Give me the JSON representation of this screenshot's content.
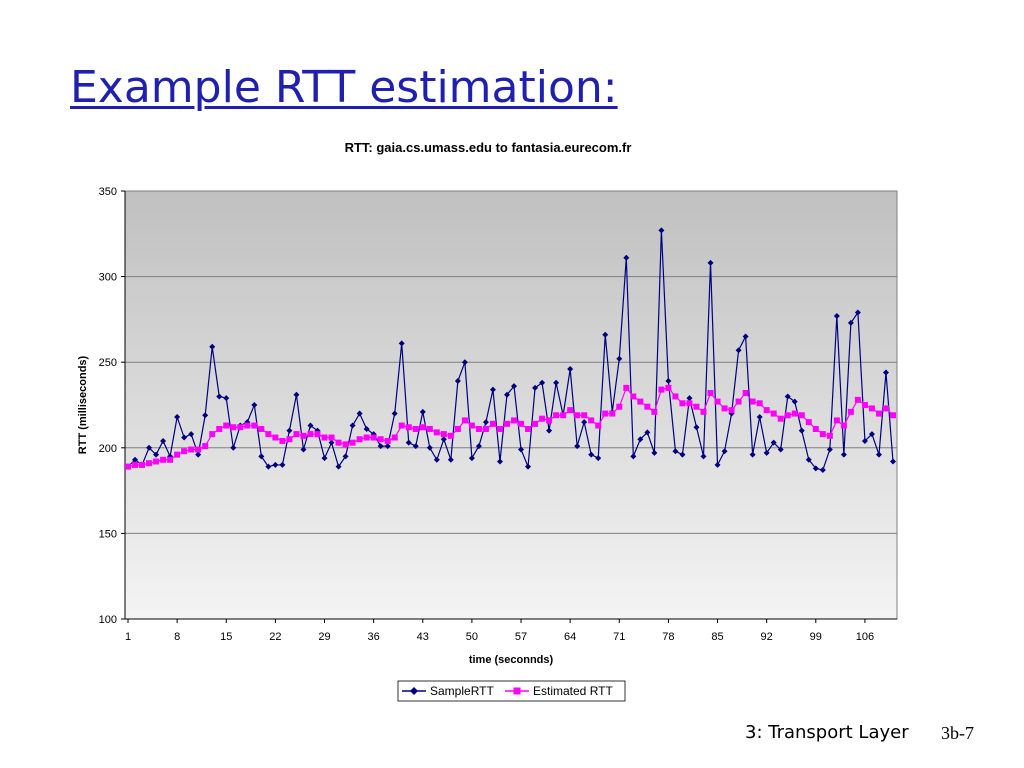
{
  "slide": {
    "title": "Example RTT estimation:",
    "footer_text": "3: Transport Layer",
    "footer_page": "3b-7"
  },
  "chart_data": {
    "type": "line",
    "title": "RTT: gaia.cs.umass.edu to fantasia.eurecom.fr",
    "xlabel": "time (seconnds)",
    "ylabel": "RTT (milliseconds)",
    "ylim": [
      100,
      350
    ],
    "yticks": [
      100,
      150,
      200,
      250,
      300,
      350
    ],
    "xticks": [
      1,
      8,
      15,
      22,
      29,
      36,
      43,
      50,
      57,
      64,
      71,
      78,
      85,
      92,
      99,
      106
    ],
    "x_start": 1,
    "grid": true,
    "legend_position": "bottom",
    "colors": {
      "sample": "#000080",
      "estimated": "#ff00ff",
      "plot_top": "#c0c0c0",
      "plot_bottom": "#f4f4f4"
    },
    "series": [
      {
        "name": "SampleRTT",
        "marker": "diamond",
        "values": [
          189,
          193,
          190,
          200,
          196,
          204,
          195,
          218,
          206,
          208,
          196,
          219,
          259,
          230,
          229,
          200,
          213,
          215,
          225,
          195,
          189,
          190,
          190,
          210,
          231,
          199,
          213,
          210,
          194,
          203,
          189,
          195,
          213,
          220,
          211,
          208,
          201,
          201,
          220,
          261,
          203,
          201,
          221,
          200,
          193,
          205,
          193,
          239,
          250,
          194,
          201,
          215,
          234,
          192,
          231,
          236,
          199,
          189,
          235,
          238,
          210,
          238,
          219,
          246,
          201,
          215,
          196,
          194,
          266,
          221,
          252,
          311,
          195,
          205,
          209,
          197,
          327,
          239,
          198,
          196,
          229,
          212,
          195,
          308,
          190,
          198,
          220,
          257,
          265,
          196,
          218,
          197,
          203,
          199,
          230,
          227,
          210,
          193,
          188,
          187,
          199,
          277,
          196,
          273,
          279,
          204,
          208,
          196,
          244,
          192
        ]
      },
      {
        "name": "Estimated RTT",
        "marker": "square",
        "values": [
          189,
          190,
          190,
          191,
          192,
          193,
          193,
          196,
          198,
          199,
          199,
          201,
          208,
          211,
          213,
          212,
          212,
          213,
          213,
          211,
          208,
          206,
          204,
          205,
          208,
          207,
          208,
          208,
          206,
          206,
          203,
          202,
          203,
          205,
          206,
          206,
          205,
          204,
          206,
          213,
          212,
          211,
          212,
          211,
          209,
          208,
          207,
          211,
          216,
          213,
          211,
          211,
          214,
          211,
          214,
          216,
          214,
          211,
          214,
          217,
          216,
          219,
          219,
          222,
          219,
          219,
          216,
          213,
          220,
          220,
          224,
          235,
          230,
          227,
          224,
          221,
          234,
          235,
          230,
          226,
          226,
          224,
          221,
          232,
          227,
          223,
          222,
          227,
          232,
          227,
          226,
          222,
          220,
          217,
          219,
          220,
          219,
          215,
          211,
          208,
          207,
          216,
          213,
          221,
          228,
          225,
          223,
          220,
          223,
          219
        ]
      }
    ]
  }
}
